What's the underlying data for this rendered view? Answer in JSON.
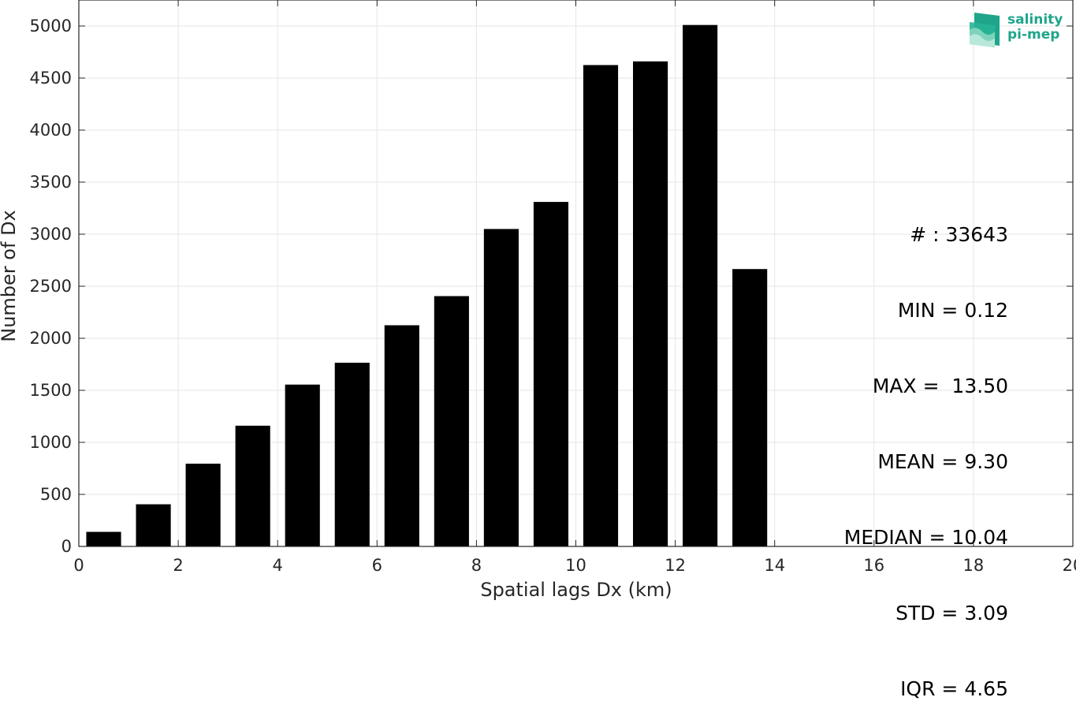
{
  "chart_data": {
    "type": "bar",
    "xlabel": "Spatial lags Dx (km)",
    "ylabel": "Number of Dx",
    "xlim": [
      0,
      20
    ],
    "ylim": [
      0,
      5250
    ],
    "xticks": [
      0,
      2,
      4,
      6,
      8,
      10,
      12,
      14,
      16,
      18,
      20
    ],
    "yticks": [
      0,
      500,
      1000,
      1500,
      2000,
      2500,
      3000,
      3500,
      4000,
      4500,
      5000
    ],
    "grid": true,
    "bar_width": 0.7,
    "bars": [
      {
        "x": 0.5,
        "value": 140
      },
      {
        "x": 1.5,
        "value": 405
      },
      {
        "x": 2.5,
        "value": 795
      },
      {
        "x": 3.5,
        "value": 1160
      },
      {
        "x": 4.5,
        "value": 1555
      },
      {
        "x": 5.5,
        "value": 1765
      },
      {
        "x": 6.5,
        "value": 2125
      },
      {
        "x": 7.5,
        "value": 2405
      },
      {
        "x": 8.5,
        "value": 3050
      },
      {
        "x": 9.5,
        "value": 3310
      },
      {
        "x": 10.5,
        "value": 4625
      },
      {
        "x": 11.5,
        "value": 4660
      },
      {
        "x": 12.5,
        "value": 5010
      },
      {
        "x": 13.5,
        "value": 2665
      }
    ],
    "bar_color": "#000000",
    "grid_color": "#e6e6e6",
    "axis_color": "#262626"
  },
  "stats": {
    "count": "# : 33643",
    "min": "MIN = 0.12",
    "max": "MAX =  13.50",
    "mean": "MEAN = 9.30",
    "median": "MEDIAN = 10.04",
    "std": "STD = 3.09",
    "iqr": "IQR = 4.65"
  },
  "logo": {
    "line1": "salinity",
    "line2": "pi-mep",
    "color": "#1fa58a"
  }
}
